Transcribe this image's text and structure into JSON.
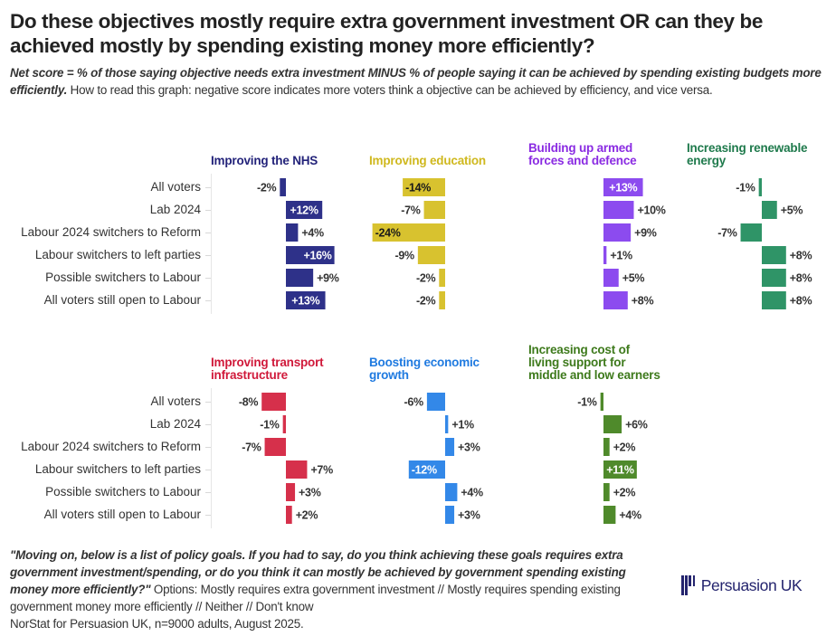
{
  "header": {
    "title": "Do these objectives mostly require extra government investment OR can they be achieved mostly by spending existing money more efficiently?",
    "subtitle_bold": "Net score = % of those saying objective needs extra investment MINUS % of people saying it can be achieved by spending existing budgets more efficiently.",
    "subtitle_rest": " How to read this graph: negative score indicates more voters think a objective can be achieved by efficiency, and vice versa."
  },
  "footer": {
    "question_bold": "\"Moving on, below is a list of policy goals. If you had to say, do you think achieving these goals requires extra government investment/spending, or do you think it can mostly be achieved by government spending existing money more efficiently?\"",
    "options": " Options: Mostly requires extra government investment // Mostly requires spending existing government money more efficiently // Neither // Don't know",
    "source": "NorStat for Persuasion UK, n=9000 adults, August 2025."
  },
  "logo": {
    "name": "Persuasion UK",
    "icon": "bars-logo-icon"
  },
  "chart_data": {
    "type": "bar",
    "orientation": "horizontal",
    "unit": "%",
    "title": "Do these objectives mostly require extra government investment OR can they be achieved mostly by spending existing money more efficiently?",
    "xlabel": "Net score",
    "categories": [
      "All voters",
      "Lab 2024",
      "Labour 2024 switchers to Reform",
      "Labour switchers to left parties",
      "Possible switchers to Labour",
      "All voters still open to Labour"
    ],
    "series": [
      {
        "name": "Improving the NHS",
        "color": "#2e3189",
        "values": [
          -2,
          12,
          4,
          16,
          9,
          13
        ],
        "highlight": [
          false,
          true,
          false,
          true,
          false,
          true
        ]
      },
      {
        "name": "Improving education",
        "color": "#d8c22f",
        "values": [
          -14,
          -7,
          -24,
          -9,
          -2,
          -2
        ],
        "highlight": [
          true,
          false,
          true,
          false,
          false,
          false
        ]
      },
      {
        "name": "Building up armed forces and defence",
        "color": "#8c4bef",
        "values": [
          13,
          10,
          9,
          1,
          5,
          8
        ],
        "highlight": [
          true,
          false,
          false,
          false,
          false,
          false
        ]
      },
      {
        "name": "Increasing renewable energy",
        "color": "#2f9467",
        "values": [
          -1,
          5,
          -7,
          8,
          8,
          8
        ],
        "highlight": [
          false,
          false,
          false,
          false,
          false,
          false
        ]
      },
      {
        "name": "Improving transport infrastructure",
        "color": "#d6304b",
        "values": [
          -8,
          -1,
          -7,
          7,
          3,
          2
        ],
        "highlight": [
          false,
          false,
          false,
          false,
          false,
          false
        ]
      },
      {
        "name": "Boosting economic growth",
        "color": "#3388e8",
        "values": [
          -6,
          1,
          3,
          -12,
          4,
          3
        ],
        "highlight": [
          false,
          false,
          false,
          true,
          false,
          false
        ]
      },
      {
        "name": "Increasing cost of living support for middle and low earners",
        "color": "#4f8a2b",
        "values": [
          -1,
          6,
          2,
          11,
          2,
          4
        ],
        "highlight": [
          false,
          false,
          false,
          true,
          false,
          false
        ]
      }
    ],
    "panel_titles": [
      [
        "Improving the NHS"
      ],
      [
        "Improving education"
      ],
      [
        "Building up armed",
        "forces and defence"
      ],
      [
        "Increasing renewable",
        "energy"
      ],
      [
        "Improving transport",
        "infrastructure"
      ],
      [
        "Boosting economic",
        "growth"
      ],
      [
        "Increasing cost of",
        "living support for",
        "middle and low earners"
      ]
    ],
    "title_colors": [
      "#23237a",
      "#cfb81e",
      "#8a2be2",
      "#1f7a4c",
      "#d0193a",
      "#1f7ae0",
      "#3e7a1c"
    ]
  }
}
